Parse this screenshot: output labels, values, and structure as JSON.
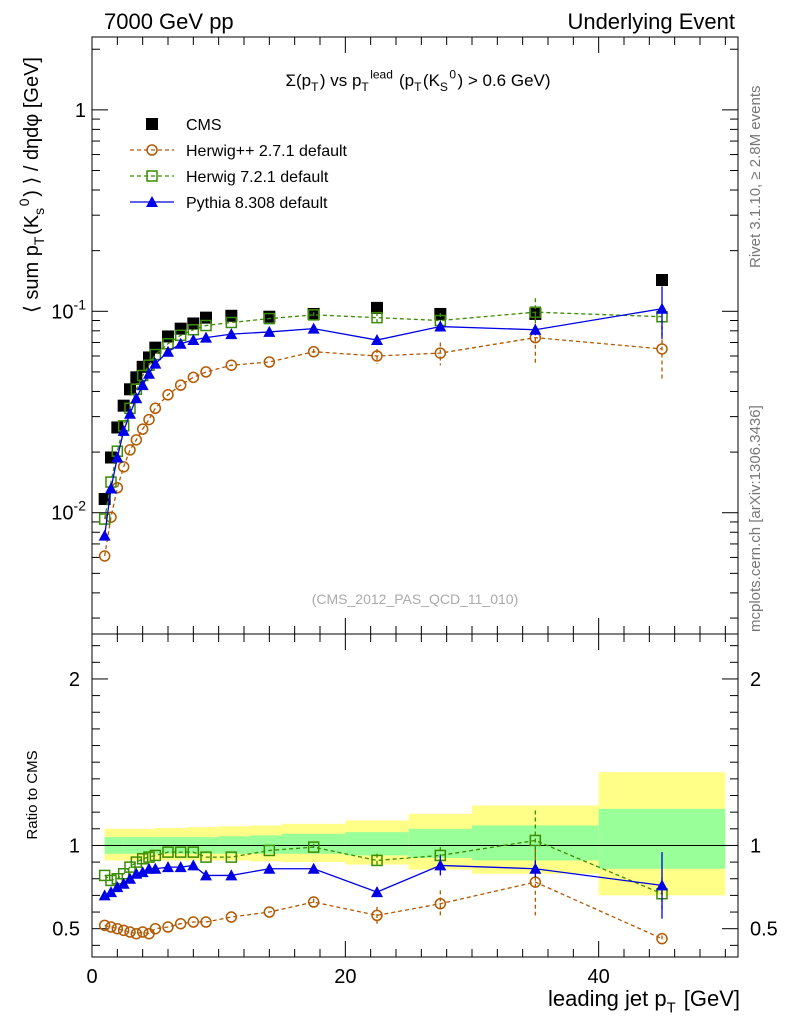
{
  "header": {
    "left": "7000 GeV pp",
    "right": "Underlying Event"
  },
  "side_labels": {
    "rivet": "Rivet 3.1.10, ≥ 2.8M events",
    "mcplots": "mcplots.cern.ch [arXiv:1306.3436]"
  },
  "plot_title": "Σ(p_T) vs p_T^lead (p_T(K_S^0) > 0.6 GeV)",
  "analysis_id": "(CMS_2012_PAS_QCD_11_010)",
  "chart_data": [
    {
      "type": "scatter",
      "panel": "main",
      "yscale": "log",
      "ylabel": "⟨ sum p_T(K_s^0) ⟩ / dηdφ [GeV]",
      "xlim": [
        0,
        51
      ],
      "ylim": [
        0.0025,
        2.3
      ],
      "yticks": [
        "10^-2",
        "10^-1",
        "1"
      ],
      "legend_position": "top-left",
      "x": [
        1.0,
        1.5,
        2.0,
        2.5,
        3.0,
        3.5,
        4.0,
        4.5,
        5.0,
        6.0,
        7.0,
        8.0,
        9.0,
        11.0,
        14.0,
        17.5,
        22.5,
        27.5,
        35.0,
        45.0
      ],
      "series": [
        {
          "name": "CMS",
          "color": "#000000",
          "marker": "filled-square",
          "values": [
            0.0117,
            0.0188,
            0.0265,
            0.034,
            0.041,
            0.047,
            0.053,
            0.059,
            0.066,
            0.075,
            0.082,
            0.087,
            0.093,
            0.095,
            0.094,
            0.097,
            0.104,
            0.097,
            0.097,
            0.143
          ]
        },
        {
          "name": "Herwig++ 2.7.1 default",
          "color": "#b35900",
          "marker": "open-circle",
          "line": "dashed",
          "values": [
            0.0061,
            0.0095,
            0.0133,
            0.0169,
            0.0205,
            0.023,
            0.026,
            0.029,
            0.033,
            0.0385,
            0.043,
            0.047,
            0.05,
            0.054,
            0.056,
            0.063,
            0.06,
            0.062,
            0.074,
            0.065
          ],
          "errors": [
            0,
            0,
            0,
            0,
            0,
            0,
            0,
            0,
            0,
            0,
            0,
            0,
            0,
            0,
            0,
            0.002,
            0.005,
            0.008,
            0.02,
            0.02
          ]
        },
        {
          "name": "Herwig 7.2.1 default",
          "color": "#3a8c00",
          "marker": "open-square",
          "line": "dashed",
          "values": [
            0.0093,
            0.0142,
            0.0202,
            0.027,
            0.033,
            0.041,
            0.048,
            0.054,
            0.061,
            0.069,
            0.076,
            0.081,
            0.085,
            0.088,
            0.092,
            0.096,
            0.093,
            0.09,
            0.099,
            0.094
          ],
          "errors": [
            0,
            0,
            0,
            0,
            0,
            0,
            0,
            0,
            0,
            0,
            0,
            0,
            0,
            0,
            0,
            0.003,
            0.006,
            0.008,
            0.017,
            0.013
          ]
        },
        {
          "name": "Pythia 8.308 default",
          "color": "#0000e6",
          "marker": "filled-triangle",
          "line": "solid",
          "values": [
            0.0077,
            0.0132,
            0.0188,
            0.0255,
            0.031,
            0.037,
            0.043,
            0.049,
            0.055,
            0.063,
            0.069,
            0.072,
            0.074,
            0.077,
            0.079,
            0.082,
            0.072,
            0.084,
            0.081,
            0.103
          ],
          "errors": [
            0,
            0,
            0,
            0,
            0,
            0,
            0,
            0,
            0,
            0,
            0,
            0,
            0,
            0,
            0,
            0,
            0.003,
            0.004,
            0.005,
            0.03
          ]
        }
      ]
    },
    {
      "type": "scatter",
      "panel": "ratio",
      "ylabel": "Ratio to CMS",
      "xlabel": "leading jet p_T [GeV]",
      "xlim": [
        0,
        51
      ],
      "ylim": [
        0.33,
        2.27
      ],
      "yticks": [
        0.5,
        1,
        2
      ],
      "xticks": [
        0,
        20,
        40
      ],
      "reference_line": 1,
      "bands": {
        "x_edges": [
          1.0,
          2.5,
          5.0,
          7.5,
          10.0,
          12.5,
          15.0,
          20.0,
          25.0,
          30.0,
          40.0,
          50.0
        ],
        "green_lo": [
          0.95,
          0.95,
          0.95,
          0.95,
          0.95,
          0.95,
          0.95,
          0.94,
          0.925,
          0.91,
          0.86
        ],
        "green_hi": [
          1.05,
          1.05,
          1.05,
          1.05,
          1.055,
          1.06,
          1.07,
          1.08,
          1.1,
          1.12,
          1.22
        ],
        "yellow_lo": [
          0.91,
          0.91,
          0.91,
          0.91,
          0.91,
          0.905,
          0.9,
          0.885,
          0.855,
          0.83,
          0.7
        ],
        "yellow_hi": [
          1.1,
          1.1,
          1.105,
          1.11,
          1.115,
          1.12,
          1.13,
          1.15,
          1.19,
          1.24,
          1.44
        ],
        "green_color": "#99ff99",
        "yellow_color": "#ffff88"
      },
      "series": [
        {
          "name": "Herwig++ 2.7.1 default",
          "color": "#b35900",
          "x": [
            1.0,
            1.5,
            2.0,
            2.5,
            3.0,
            3.5,
            4.0,
            4.5,
            5.0,
            6.0,
            7.0,
            8.0,
            9.0,
            11.0,
            14.0,
            17.5,
            22.5,
            27.5,
            35.0,
            45.0
          ],
          "values": [
            0.52,
            0.51,
            0.5,
            0.49,
            0.48,
            0.47,
            0.48,
            0.47,
            0.5,
            0.51,
            0.53,
            0.54,
            0.54,
            0.57,
            0.6,
            0.66,
            0.58,
            0.65,
            0.78,
            0.44
          ],
          "errors": [
            0,
            0,
            0,
            0,
            0,
            0,
            0,
            0,
            0,
            0,
            0,
            0,
            0,
            0,
            0,
            0.02,
            0.05,
            0.08,
            0.2,
            0.02
          ]
        },
        {
          "name": "Herwig 7.2.1 default",
          "color": "#3a8c00",
          "x": [
            1.0,
            1.5,
            2.0,
            2.5,
            3.0,
            3.5,
            4.0,
            4.5,
            5.0,
            6.0,
            7.0,
            8.0,
            9.0,
            11.0,
            14.0,
            17.5,
            22.5,
            27.5,
            35.0,
            45.0
          ],
          "values": [
            0.82,
            0.79,
            0.8,
            0.83,
            0.87,
            0.9,
            0.92,
            0.93,
            0.94,
            0.96,
            0.96,
            0.96,
            0.93,
            0.93,
            0.97,
            0.99,
            0.91,
            0.94,
            1.03,
            0.71
          ],
          "errors": [
            0,
            0,
            0,
            0,
            0,
            0,
            0,
            0,
            0,
            0,
            0,
            0,
            0,
            0,
            0,
            0.02,
            0.04,
            0.05,
            0.18,
            0.1
          ]
        },
        {
          "name": "Pythia 8.308 default",
          "color": "#0000e6",
          "x": [
            1.0,
            1.5,
            2.0,
            2.5,
            3.0,
            3.5,
            4.0,
            4.5,
            5.0,
            6.0,
            7.0,
            8.0,
            9.0,
            11.0,
            14.0,
            17.5,
            22.5,
            27.5,
            35.0,
            45.0
          ],
          "values": [
            0.7,
            0.72,
            0.75,
            0.77,
            0.8,
            0.83,
            0.84,
            0.86,
            0.86,
            0.87,
            0.87,
            0.88,
            0.82,
            0.82,
            0.86,
            0.86,
            0.72,
            0.88,
            0.86,
            0.76
          ],
          "errors": [
            0,
            0,
            0,
            0,
            0,
            0,
            0,
            0,
            0,
            0,
            0,
            0,
            0,
            0,
            0,
            0,
            0.03,
            0.06,
            0.05,
            0.2
          ]
        }
      ]
    }
  ]
}
